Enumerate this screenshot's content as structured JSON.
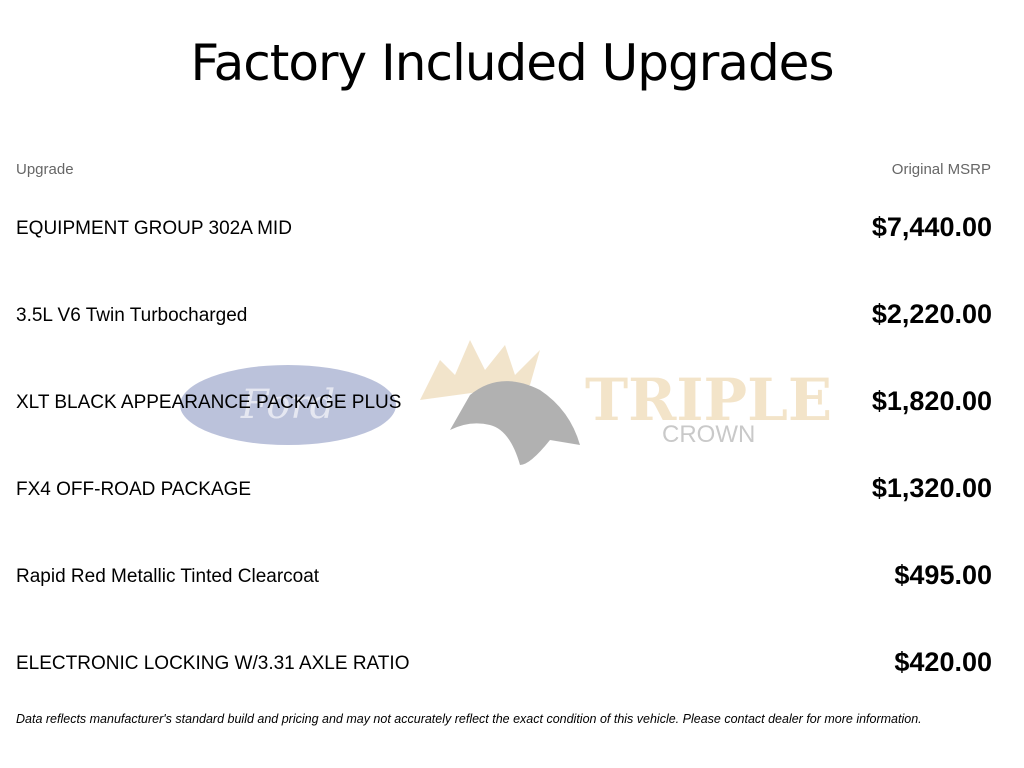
{
  "title": "Factory Included Upgrades",
  "table": {
    "headers": {
      "upgrade": "Upgrade",
      "msrp": "Original MSRP"
    },
    "rows": [
      {
        "name": "EQUIPMENT GROUP 302A MID",
        "price": "$7,440.00"
      },
      {
        "name": "3.5L V6 Twin Turbocharged",
        "price": "$2,220.00"
      },
      {
        "name": "XLT BLACK APPEARANCE PACKAGE PLUS",
        "price": "$1,820.00"
      },
      {
        "name": "FX4 OFF-ROAD PACKAGE",
        "price": "$1,320.00"
      },
      {
        "name": "Rapid Red Metallic Tinted Clearcoat",
        "price": "$495.00"
      },
      {
        "name": "ELECTRONIC LOCKING W/3.31 AXLE RATIO",
        "price": "$420.00"
      }
    ]
  },
  "watermark": {
    "brand": "Ford",
    "dealer_line1": "TRIPLE",
    "dealer_line2": "CROWN"
  },
  "disclaimer": "Data reflects manufacturer's standard build and pricing and may not accurately reflect the exact condition of this vehicle. Please contact dealer for more information."
}
